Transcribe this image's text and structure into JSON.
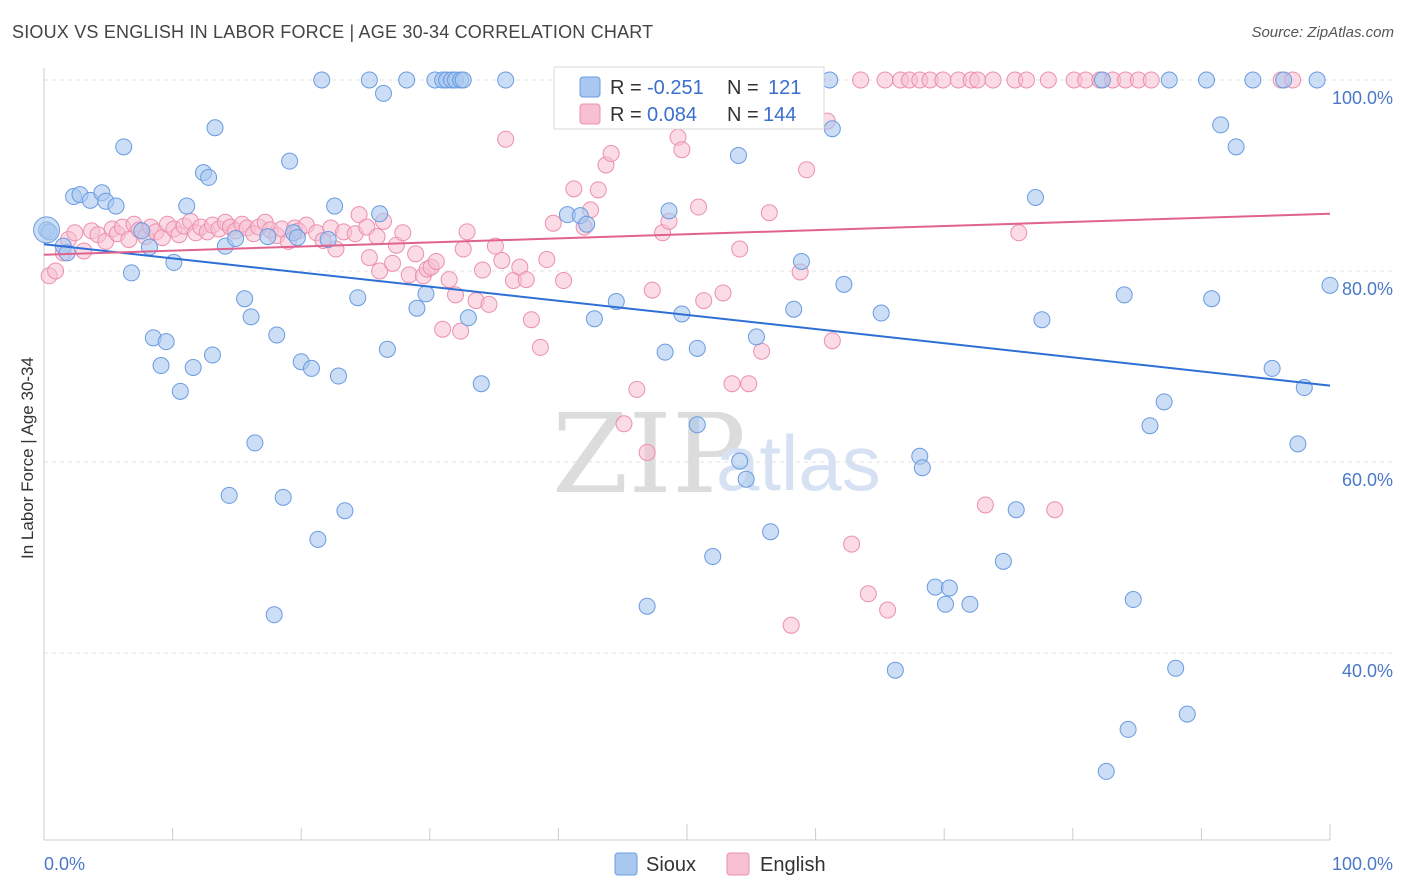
{
  "title": "SIOUX VS ENGLISH IN LABOR FORCE | AGE 30-34 CORRELATION CHART",
  "source": "Source: ZipAtlas.com",
  "watermark": {
    "part1": "ZIP",
    "part2": "atlas"
  },
  "chart_data": {
    "type": "scatter",
    "ylabel": "In Labor Force | Age 30-34",
    "xlim": [
      0,
      100
    ],
    "ylim": [
      20,
      102
    ],
    "x_tick_labels": [
      "0.0%",
      "100.0%"
    ],
    "y_ticks": [
      40,
      60,
      80,
      100
    ],
    "y_tick_labels": [
      "40.0%",
      "60.0%",
      "80.0%",
      "100.0%"
    ],
    "legend_top": {
      "rows": [
        {
          "r_label": "R = ",
          "r_value": "-0.251",
          "n_label": "N = ",
          "n_value": "121"
        },
        {
          "r_label": "R = ",
          "r_value": "0.084",
          "n_label": "N = ",
          "n_value": "144"
        }
      ]
    },
    "colors": {
      "sioux_fill": "#a9c8f0",
      "sioux_stroke": "#6a9be0",
      "sioux_line": "#2d6fd6",
      "english_fill": "#f7c0d2",
      "english_stroke": "#ec8fae",
      "english_line": "#e0628e",
      "grid": "#e2e2e2"
    },
    "series": [
      {
        "name": "Sioux",
        "trend": {
          "x": [
            0,
            100
          ],
          "y": [
            82.8,
            68.0
          ]
        },
        "points": [
          [
            0.2,
            84.3
          ],
          [
            0.4,
            84.1
          ],
          [
            1.5,
            82.6
          ],
          [
            1.8,
            81.9
          ],
          [
            2.3,
            87.8
          ],
          [
            2.8,
            88.0
          ],
          [
            3.6,
            87.4
          ],
          [
            4.5,
            88.2
          ],
          [
            4.8,
            87.3
          ],
          [
            5.6,
            86.8
          ],
          [
            6.2,
            93.0
          ],
          [
            6.8,
            79.8
          ],
          [
            7.6,
            84.2
          ],
          [
            8.2,
            82.5
          ],
          [
            8.5,
            73.0
          ],
          [
            9.1,
            70.1
          ],
          [
            9.5,
            72.6
          ],
          [
            10.1,
            80.9
          ],
          [
            10.6,
            67.4
          ],
          [
            11.1,
            86.8
          ],
          [
            11.6,
            69.9
          ],
          [
            12.4,
            90.3
          ],
          [
            12.8,
            89.8
          ],
          [
            13.1,
            71.2
          ],
          [
            13.3,
            95.0
          ],
          [
            14.1,
            82.6
          ],
          [
            14.4,
            56.5
          ],
          [
            14.9,
            83.4
          ],
          [
            15.6,
            77.1
          ],
          [
            16.1,
            75.2
          ],
          [
            16.4,
            62.0
          ],
          [
            17.4,
            83.6
          ],
          [
            17.9,
            44.0
          ],
          [
            18.1,
            73.3
          ],
          [
            18.6,
            56.3
          ],
          [
            19.1,
            91.5
          ],
          [
            19.4,
            84.0
          ],
          [
            19.7,
            83.5
          ],
          [
            20.0,
            70.5
          ],
          [
            20.8,
            69.8
          ],
          [
            21.3,
            51.9
          ],
          [
            21.6,
            100
          ],
          [
            22.1,
            83.3
          ],
          [
            22.6,
            86.8
          ],
          [
            22.9,
            69.0
          ],
          [
            23.4,
            54.9
          ],
          [
            24.4,
            77.2
          ],
          [
            25.3,
            100
          ],
          [
            26.1,
            86.0
          ],
          [
            26.4,
            98.6
          ],
          [
            26.7,
            71.8
          ],
          [
            28.2,
            100
          ],
          [
            29.0,
            76.1
          ],
          [
            29.7,
            77.6
          ],
          [
            30.4,
            100
          ],
          [
            31.0,
            100
          ],
          [
            31.3,
            100
          ],
          [
            31.7,
            100
          ],
          [
            32.0,
            100
          ],
          [
            32.4,
            100
          ],
          [
            32.6,
            100
          ],
          [
            33.0,
            75.1
          ],
          [
            34.0,
            68.2
          ],
          [
            35.9,
            100
          ],
          [
            40.7,
            85.9
          ],
          [
            41.7,
            85.8
          ],
          [
            42.2,
            84.9
          ],
          [
            42.8,
            75.0
          ],
          [
            44.5,
            76.8
          ],
          [
            46.9,
            44.9
          ],
          [
            48.3,
            71.5
          ],
          [
            48.6,
            86.3
          ],
          [
            49.6,
            75.5
          ],
          [
            50.8,
            71.9
          ],
          [
            50.8,
            63.9
          ],
          [
            52.0,
            50.1
          ],
          [
            53.1,
            100
          ],
          [
            54.0,
            92.1
          ],
          [
            54.1,
            60.1
          ],
          [
            54.6,
            58.2
          ],
          [
            55.4,
            73.1
          ],
          [
            56.5,
            52.7
          ],
          [
            58.3,
            76.0
          ],
          [
            58.9,
            81.0
          ],
          [
            61.1,
            100
          ],
          [
            61.3,
            94.9
          ],
          [
            62.2,
            78.6
          ],
          [
            65.1,
            75.6
          ],
          [
            66.2,
            38.2
          ],
          [
            68.1,
            60.6
          ],
          [
            68.3,
            59.4
          ],
          [
            69.3,
            46.9
          ],
          [
            70.1,
            45.1
          ],
          [
            70.4,
            46.8
          ],
          [
            72.0,
            45.1
          ],
          [
            74.6,
            49.6
          ],
          [
            75.6,
            55.0
          ],
          [
            77.1,
            87.7
          ],
          [
            77.6,
            74.9
          ],
          [
            82.3,
            100
          ],
          [
            82.6,
            27.6
          ],
          [
            84.0,
            77.5
          ],
          [
            84.3,
            32.0
          ],
          [
            84.7,
            45.6
          ],
          [
            86.0,
            63.8
          ],
          [
            87.1,
            66.3
          ],
          [
            87.5,
            100
          ],
          [
            88.0,
            38.4
          ],
          [
            88.9,
            33.6
          ],
          [
            90.4,
            100
          ],
          [
            90.8,
            77.1
          ],
          [
            91.5,
            95.3
          ],
          [
            92.7,
            93.0
          ],
          [
            94.0,
            100
          ],
          [
            95.5,
            69.8
          ],
          [
            96.4,
            100
          ],
          [
            97.5,
            61.9
          ],
          [
            98.0,
            67.8
          ],
          [
            99.0,
            100
          ],
          [
            100.0,
            78.5
          ]
        ]
      },
      {
        "name": "English",
        "trend": {
          "x": [
            0,
            100
          ],
          "y": [
            81.7,
            86.0
          ]
        },
        "points": [
          [
            0.4,
            79.5
          ],
          [
            0.9,
            80.0
          ],
          [
            1.5,
            81.9
          ],
          [
            1.9,
            83.3
          ],
          [
            2.4,
            84.0
          ],
          [
            3.1,
            82.1
          ],
          [
            3.7,
            84.2
          ],
          [
            4.2,
            83.8
          ],
          [
            4.8,
            83.1
          ],
          [
            5.3,
            84.4
          ],
          [
            5.7,
            83.9
          ],
          [
            6.1,
            84.6
          ],
          [
            6.6,
            83.3
          ],
          [
            7.0,
            84.9
          ],
          [
            7.4,
            84.3
          ],
          [
            7.9,
            83.6
          ],
          [
            8.3,
            84.6
          ],
          [
            8.7,
            84.1
          ],
          [
            9.2,
            83.5
          ],
          [
            9.6,
            84.9
          ],
          [
            10.1,
            84.4
          ],
          [
            10.5,
            83.8
          ],
          [
            10.9,
            84.7
          ],
          [
            11.4,
            85.2
          ],
          [
            11.8,
            84.0
          ],
          [
            12.2,
            84.6
          ],
          [
            12.7,
            84.1
          ],
          [
            13.1,
            84.8
          ],
          [
            13.6,
            84.4
          ],
          [
            14.1,
            85.1
          ],
          [
            14.5,
            84.6
          ],
          [
            14.9,
            84.2
          ],
          [
            15.4,
            84.9
          ],
          [
            15.8,
            84.5
          ],
          [
            16.3,
            83.9
          ],
          [
            16.7,
            84.6
          ],
          [
            17.2,
            85.1
          ],
          [
            17.6,
            84.3
          ],
          [
            18.1,
            83.7
          ],
          [
            18.5,
            84.4
          ],
          [
            19.0,
            83.1
          ],
          [
            19.5,
            84.5
          ],
          [
            19.8,
            84.2
          ],
          [
            20.4,
            84.8
          ],
          [
            21.2,
            84.0
          ],
          [
            21.7,
            83.2
          ],
          [
            22.3,
            84.5
          ],
          [
            22.7,
            82.3
          ],
          [
            23.3,
            84.1
          ],
          [
            24.2,
            83.9
          ],
          [
            24.5,
            85.9
          ],
          [
            25.1,
            84.6
          ],
          [
            25.3,
            81.4
          ],
          [
            25.9,
            83.6
          ],
          [
            26.1,
            80.0
          ],
          [
            26.4,
            85.2
          ],
          [
            27.1,
            80.8
          ],
          [
            27.4,
            82.7
          ],
          [
            27.9,
            84.0
          ],
          [
            28.4,
            79.6
          ],
          [
            28.9,
            81.8
          ],
          [
            29.5,
            79.5
          ],
          [
            29.8,
            80.2
          ],
          [
            30.1,
            80.4
          ],
          [
            30.5,
            81.0
          ],
          [
            31.0,
            73.9
          ],
          [
            31.5,
            79.1
          ],
          [
            32.0,
            77.5
          ],
          [
            32.4,
            73.7
          ],
          [
            32.6,
            82.3
          ],
          [
            32.9,
            84.1
          ],
          [
            33.6,
            76.9
          ],
          [
            34.1,
            80.1
          ],
          [
            34.6,
            76.5
          ],
          [
            35.1,
            82.6
          ],
          [
            35.6,
            81.1
          ],
          [
            35.9,
            93.8
          ],
          [
            36.5,
            79.0
          ],
          [
            37.0,
            80.4
          ],
          [
            37.5,
            79.1
          ],
          [
            37.9,
            74.9
          ],
          [
            38.6,
            72.0
          ],
          [
            39.1,
            81.2
          ],
          [
            39.6,
            85.0
          ],
          [
            40.4,
            79.0
          ],
          [
            41.2,
            88.6
          ],
          [
            42.0,
            84.6
          ],
          [
            42.5,
            86.4
          ],
          [
            43.1,
            88.5
          ],
          [
            43.7,
            91.1
          ],
          [
            44.1,
            92.3
          ],
          [
            45.1,
            64.0
          ],
          [
            46.1,
            67.6
          ],
          [
            46.9,
            61.0
          ],
          [
            47.3,
            78.0
          ],
          [
            48.1,
            84.0
          ],
          [
            48.6,
            85.2
          ],
          [
            49.3,
            94.0
          ],
          [
            49.6,
            92.7
          ],
          [
            50.9,
            86.7
          ],
          [
            51.3,
            76.9
          ],
          [
            52.8,
            77.7
          ],
          [
            53.5,
            68.2
          ],
          [
            54.1,
            82.3
          ],
          [
            54.8,
            68.2
          ],
          [
            55.8,
            71.6
          ],
          [
            56.4,
            86.1
          ],
          [
            56.9,
            100
          ],
          [
            58.1,
            42.9
          ],
          [
            58.8,
            79.9
          ],
          [
            59.3,
            90.6
          ],
          [
            60.1,
            100
          ],
          [
            60.9,
            95.7
          ],
          [
            61.3,
            72.7
          ],
          [
            62.8,
            51.4
          ],
          [
            63.5,
            100
          ],
          [
            64.1,
            46.2
          ],
          [
            65.4,
            100
          ],
          [
            65.6,
            44.5
          ],
          [
            66.6,
            100
          ],
          [
            67.3,
            100
          ],
          [
            68.1,
            100
          ],
          [
            68.9,
            100
          ],
          [
            69.9,
            100
          ],
          [
            71.1,
            100
          ],
          [
            72.1,
            100
          ],
          [
            72.6,
            100
          ],
          [
            73.2,
            55.5
          ],
          [
            73.8,
            100
          ],
          [
            75.5,
            100
          ],
          [
            75.8,
            84.0
          ],
          [
            76.4,
            100
          ],
          [
            78.1,
            100
          ],
          [
            78.6,
            55.0
          ],
          [
            80.1,
            100
          ],
          [
            81.0,
            100
          ],
          [
            82.1,
            100
          ],
          [
            83.1,
            100
          ],
          [
            84.1,
            100
          ],
          [
            85.1,
            100
          ],
          [
            86.1,
            100
          ],
          [
            96.2,
            100
          ],
          [
            97.1,
            100
          ]
        ]
      }
    ]
  },
  "legend_bottom": {
    "items": [
      {
        "label": "Sioux"
      },
      {
        "label": "English"
      }
    ]
  }
}
